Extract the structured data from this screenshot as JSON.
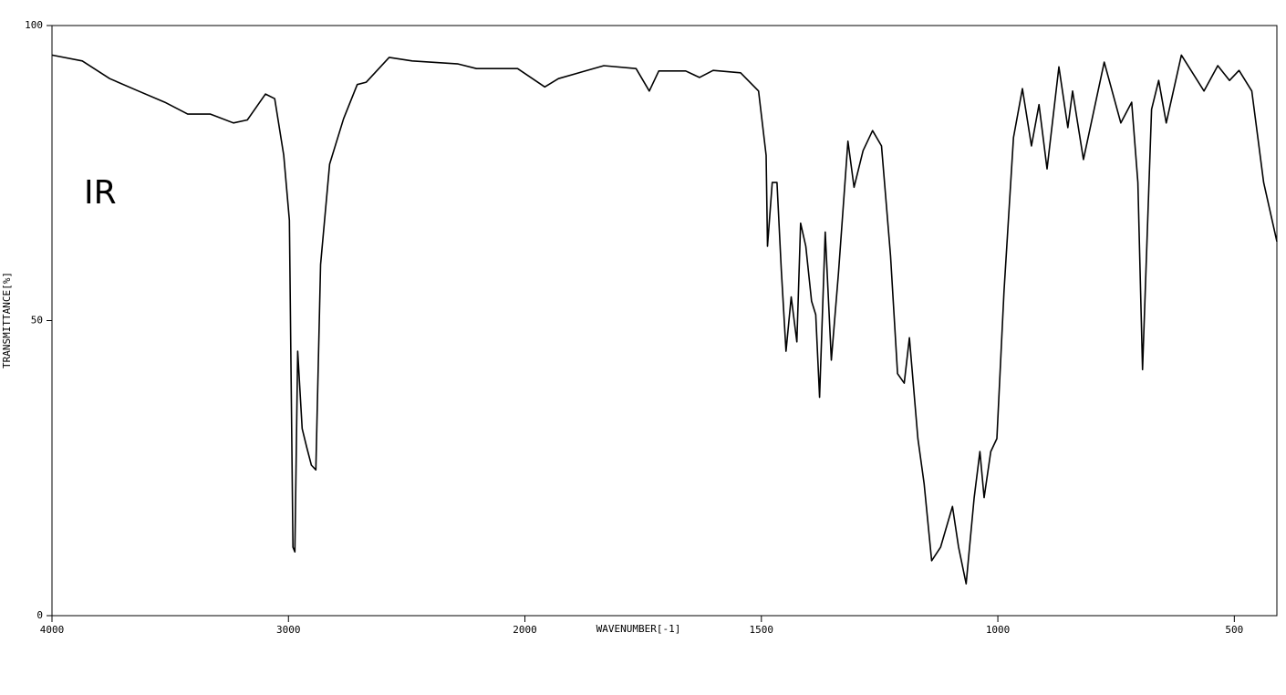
{
  "chart_data": {
    "type": "line",
    "annotation": "IR",
    "xlabel": "WAVENUMBER[-1]",
    "ylabel": "TRANSMITTANCE[%]",
    "x_scale": "piecewise",
    "xlim": [
      4000,
      410
    ],
    "xticks": [
      4000,
      3000,
      2000,
      1500,
      1000,
      500
    ],
    "ylim": [
      0,
      100
    ],
    "yticks": [
      0,
      50,
      100
    ],
    "series": [
      {
        "name": "IR",
        "color": "#000000",
        "x": [
          4000,
          3872,
          3756,
          3640,
          3523,
          3426,
          3330,
          3233,
          3174,
          3097,
          3058,
          3020,
          2996,
          2981,
          2973,
          2961,
          2942,
          2923,
          2903,
          2884,
          2864,
          2826,
          2767,
          2709,
          2671,
          2574,
          2477,
          2283,
          2205,
          2031,
          1958,
          1929,
          1833,
          1765,
          1737,
          1717,
          1660,
          1631,
          1602,
          1544,
          1506,
          1490,
          1487,
          1477,
          1467,
          1458,
          1448,
          1437,
          1425,
          1417,
          1406,
          1394,
          1385,
          1377,
          1365,
          1352,
          1337,
          1317,
          1304,
          1285,
          1265,
          1246,
          1227,
          1212,
          1198,
          1187,
          1169,
          1156,
          1140,
          1121,
          1096,
          1083,
          1067,
          1050,
          1038,
          1029,
          1015,
          1002,
          987,
          967,
          948,
          929,
          913,
          896,
          871,
          852,
          842,
          819,
          775,
          740,
          717,
          704,
          694,
          675,
          660,
          644,
          612,
          564,
          535,
          510,
          490,
          463,
          438,
          410
        ],
        "values": [
          95,
          94,
          91,
          89,
          87,
          85,
          85,
          83.5,
          84,
          88.4,
          87.6,
          78,
          67,
          11.6,
          10.8,
          44.8,
          31.7,
          28.6,
          25.5,
          24.7,
          59.5,
          76.5,
          84.2,
          90,
          90.4,
          94.6,
          94,
          93.5,
          92.7,
          92.7,
          89.6,
          91,
          93.2,
          92.7,
          88.9,
          92.3,
          92.3,
          91.2,
          92.4,
          92,
          88.9,
          78,
          62.6,
          73.4,
          73.4,
          58.7,
          44.8,
          54,
          46.4,
          66.5,
          62.6,
          53.3,
          51,
          37,
          65,
          43.3,
          58,
          80.4,
          72.6,
          78.8,
          82.2,
          79.6,
          61,
          41,
          39.4,
          47.1,
          30,
          22.4,
          9.3,
          11.6,
          18.5,
          11.6,
          5.4,
          20,
          27.8,
          20,
          27.8,
          30,
          54.9,
          81,
          89.3,
          79.6,
          86.6,
          75.7,
          93,
          82.7,
          88.9,
          77.3,
          93.8,
          83.5,
          87,
          73.4,
          41.7,
          85.8,
          90.7,
          83.5,
          95,
          88.9,
          93.2,
          90.7,
          92.4,
          88.9,
          73.4,
          63.4
        ]
      }
    ]
  }
}
